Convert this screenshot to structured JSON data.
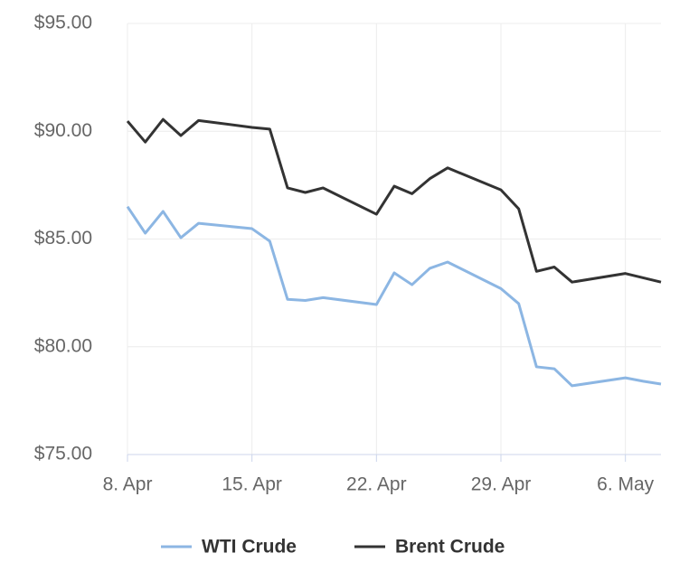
{
  "chart_data": {
    "type": "line",
    "x": [
      "04-08",
      "04-09",
      "04-10",
      "04-11",
      "04-12",
      "04-15",
      "04-16",
      "04-17",
      "04-18",
      "04-19",
      "04-22",
      "04-23",
      "04-24",
      "04-25",
      "04-26",
      "04-29",
      "04-30",
      "05-01",
      "05-02",
      "05-03",
      "05-06",
      "05-07",
      "05-08"
    ],
    "series": [
      {
        "name": "WTI Crude",
        "color": "#8cb6e3",
        "values": [
          86.5,
          85.27,
          86.28,
          85.06,
          85.73,
          85.48,
          84.9,
          82.2,
          82.15,
          82.28,
          81.96,
          83.43,
          82.88,
          83.64,
          83.93,
          82.7,
          82.0,
          79.07,
          78.98,
          78.19,
          78.56,
          78.4,
          78.27
        ]
      },
      {
        "name": "Brent Crude",
        "color": "#333333",
        "values": [
          90.47,
          89.5,
          90.55,
          89.8,
          90.5,
          90.18,
          90.1,
          87.37,
          87.16,
          87.37,
          86.15,
          87.45,
          87.1,
          87.8,
          88.3,
          87.28,
          86.4,
          83.5,
          83.7,
          83.0,
          83.4,
          83.2,
          83.0
        ]
      }
    ],
    "xlim": [
      "04-08",
      "05-08"
    ],
    "xticks": [
      {
        "value": "04-08",
        "label": "8. Apr"
      },
      {
        "value": "04-15",
        "label": "15. Apr"
      },
      {
        "value": "04-22",
        "label": "22. Apr"
      },
      {
        "value": "04-29",
        "label": "29. Apr"
      },
      {
        "value": "05-06",
        "label": "6. May"
      }
    ],
    "ylim": [
      75,
      95
    ],
    "yticks": [
      {
        "value": 75,
        "label": "$75.00"
      },
      {
        "value": 80,
        "label": "$80.00"
      },
      {
        "value": 85,
        "label": "$85.00"
      },
      {
        "value": 90,
        "label": "$90.00"
      },
      {
        "value": 95,
        "label": "$95.00"
      }
    ],
    "grid": true,
    "legend": "bottom"
  }
}
